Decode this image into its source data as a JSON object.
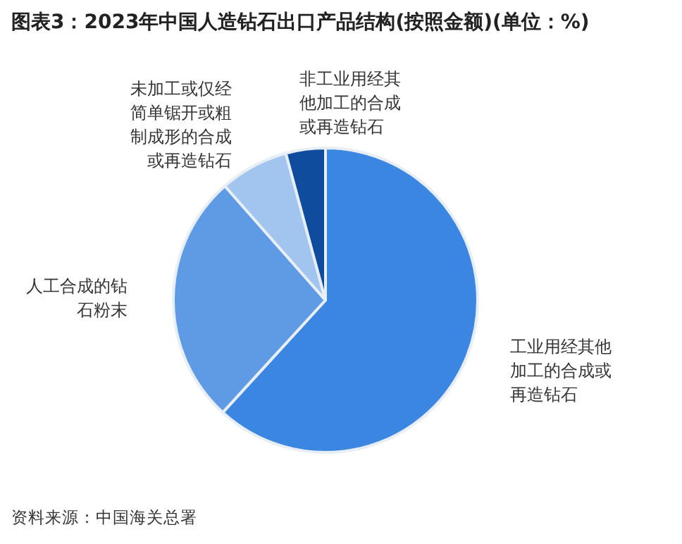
{
  "chart_data": {
    "type": "pie",
    "title": "图表3：2023年中国人造钻石出口产品结构(按照金额)(单位：%)",
    "categories": [
      "工业用经其他加工的合成或再造钻石",
      "人工合成的钻石粉末",
      "未加工或仅经简单锯开或粗制成形的合成或再造钻石",
      "非工业用经其他加工的合成或再造钻石"
    ],
    "values": [
      61.8,
      26.7,
      7.3,
      4.2
    ],
    "colors": [
      "#3a86e0",
      "#5e9be4",
      "#a2c5ef",
      "#0f4c9e"
    ],
    "annotations": [
      "资料来源：中国海关总署"
    ]
  }
}
